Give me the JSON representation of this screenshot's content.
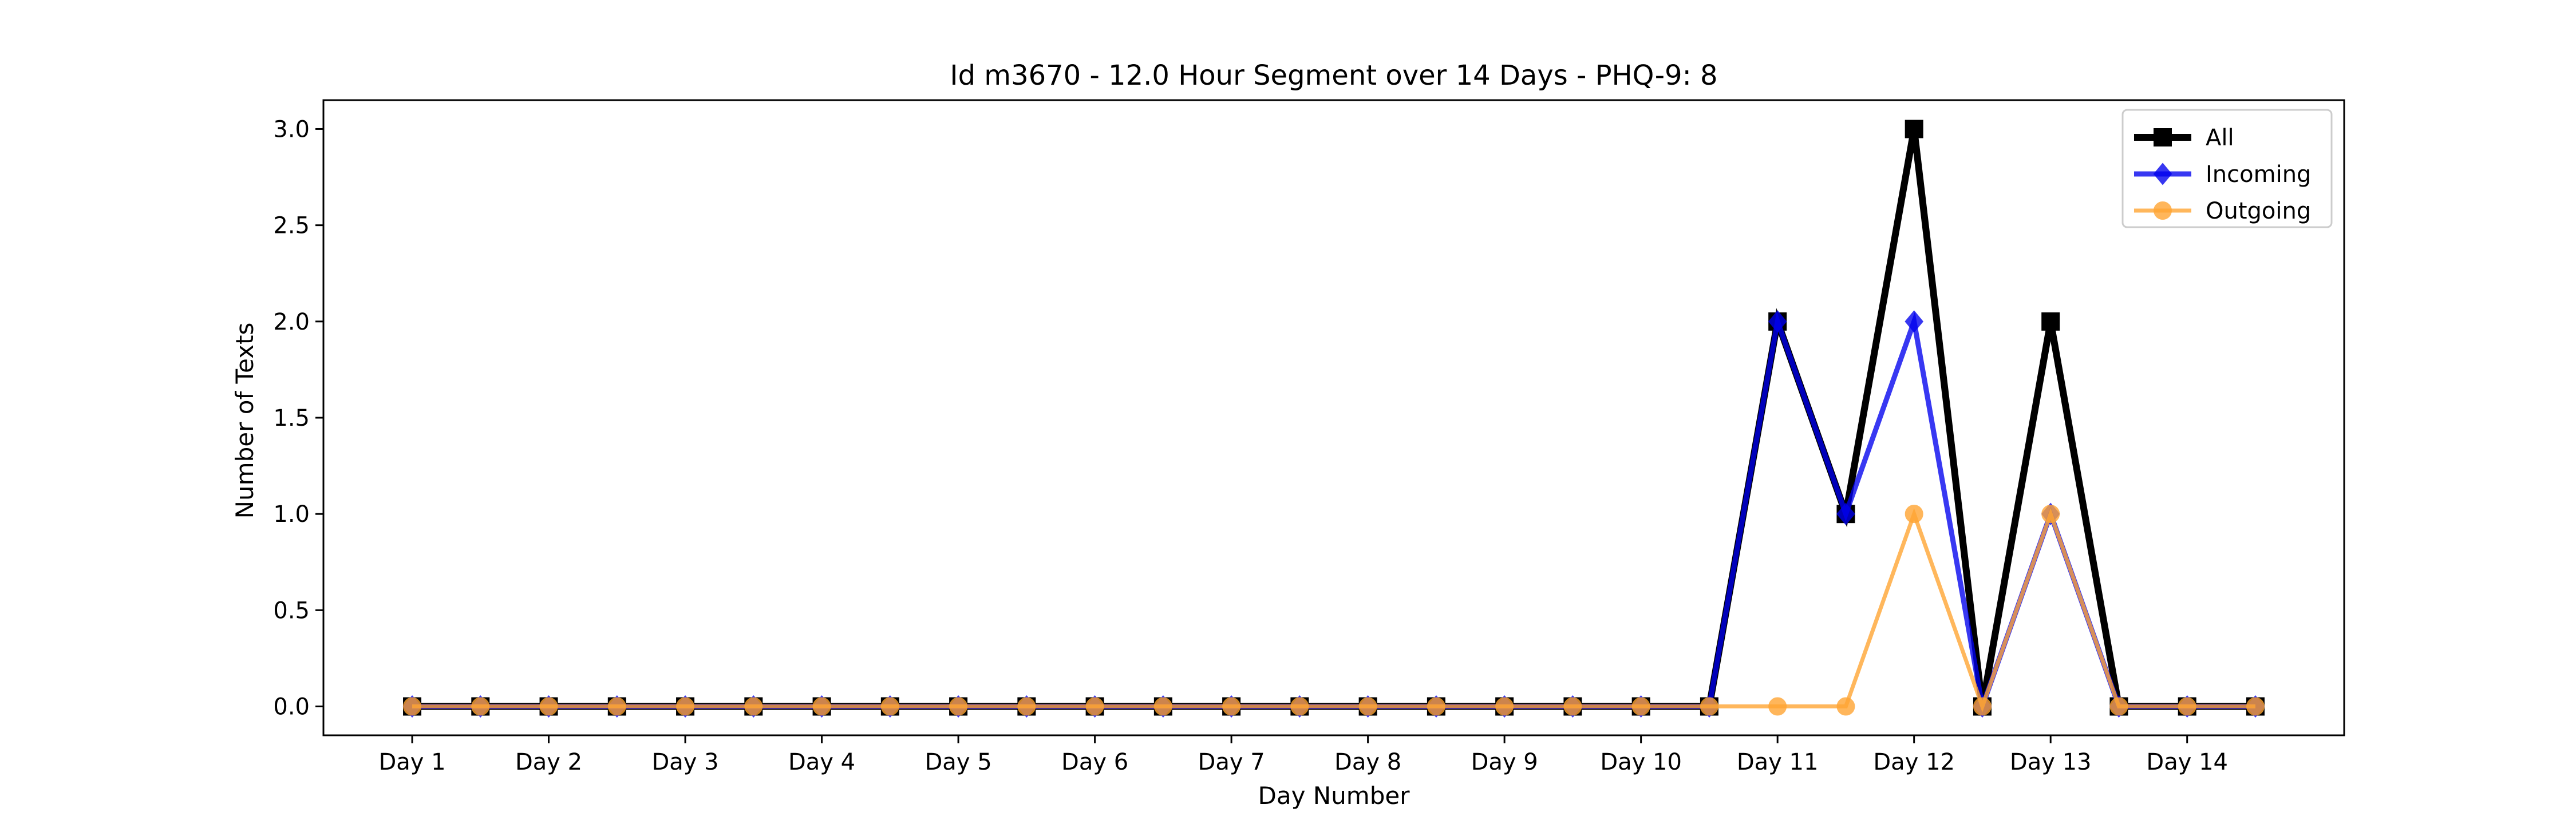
{
  "chart_data": {
    "type": "line",
    "title": "Id m3670 - 12.0 Hour Segment over 14 Days - PHQ-9: 8",
    "xlabel": "Day Number",
    "ylabel": "Number of Texts",
    "ylim": [
      -0.15,
      3.15
    ],
    "yticks": [
      0.0,
      0.5,
      1.0,
      1.5,
      2.0,
      2.5,
      3.0
    ],
    "ytick_labels": [
      "0.0",
      "0.5",
      "1.0",
      "1.5",
      "2.0",
      "2.5",
      "3.0"
    ],
    "x": [
      0,
      1,
      2,
      3,
      4,
      5,
      6,
      7,
      8,
      9,
      10,
      11,
      12,
      13,
      14,
      15,
      16,
      17,
      18,
      19,
      20,
      21,
      22,
      23,
      24,
      25,
      26,
      27
    ],
    "xlim": [
      -1.3,
      28.3
    ],
    "xticks": [
      0,
      2,
      4,
      6,
      8,
      10,
      12,
      14,
      16,
      18,
      20,
      22,
      24,
      26
    ],
    "categories": [
      "Day 1",
      "Day 2",
      "Day 3",
      "Day 4",
      "Day 5",
      "Day 6",
      "Day 7",
      "Day 8",
      "Day 9",
      "Day 10",
      "Day 11",
      "Day 12",
      "Day 13",
      "Day 14"
    ],
    "grid": false,
    "legend_position": "top-right",
    "series": [
      {
        "name": "All",
        "color": "#000000",
        "marker": "square",
        "values": [
          0,
          0,
          0,
          0,
          0,
          0,
          0,
          0,
          0,
          0,
          0,
          0,
          0,
          0,
          0,
          0,
          0,
          0,
          0,
          0,
          2,
          1,
          3,
          0,
          2,
          0,
          0,
          0
        ]
      },
      {
        "name": "Incoming",
        "color": "#0000ee",
        "marker": "diamond",
        "values": [
          0,
          0,
          0,
          0,
          0,
          0,
          0,
          0,
          0,
          0,
          0,
          0,
          0,
          0,
          0,
          0,
          0,
          0,
          0,
          0,
          2,
          1,
          2,
          0,
          1,
          0,
          0,
          0
        ]
      },
      {
        "name": "Outgoing",
        "color": "#ffa533",
        "marker": "circle",
        "values": [
          0,
          0,
          0,
          0,
          0,
          0,
          0,
          0,
          0,
          0,
          0,
          0,
          0,
          0,
          0,
          0,
          0,
          0,
          0,
          0,
          0,
          0,
          1,
          0,
          1,
          0,
          0,
          0
        ]
      }
    ]
  }
}
